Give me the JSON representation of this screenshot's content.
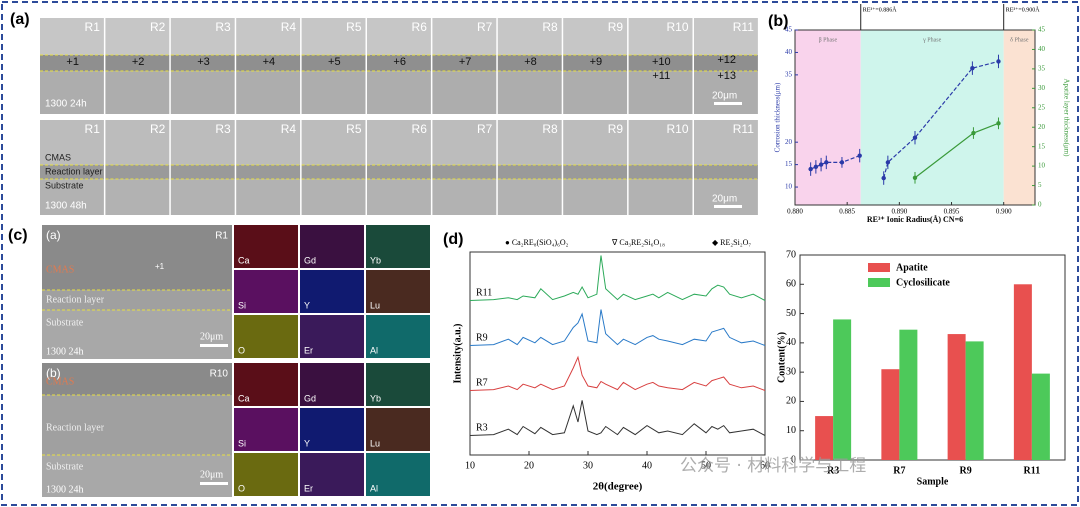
{
  "panel_a": {
    "label": "(a)",
    "samples": [
      "R1",
      "R2",
      "R3",
      "R4",
      "R5",
      "R6",
      "R7",
      "R8",
      "R9",
      "R10",
      "R11"
    ],
    "row1": {
      "markers": [
        "+1",
        "+2",
        "+3",
        "+4",
        "+5",
        "+6",
        "+7",
        "+8",
        "+9",
        "+10",
        "+11",
        "+12",
        "+13"
      ],
      "condition": "1300 24h",
      "scale": "20μm"
    },
    "row2": {
      "layers": [
        "CMAS",
        "Reaction layer",
        "Substrate"
      ],
      "condition": "1300 48h",
      "scale": "20μm"
    }
  },
  "panel_c": {
    "label": "(c)",
    "images": [
      {
        "label": "(a)",
        "sample": "R1",
        "marker": "+1",
        "layers": [
          "CMAS",
          "Reaction layer",
          "Substrate"
        ],
        "condition": "1300 24h",
        "scale": "20μm"
      },
      {
        "label": "(b)",
        "sample": "R10",
        "layers": [
          "CMAS",
          "Reaction layer",
          "Substrate"
        ],
        "condition": "1300 24h",
        "scale": "20μm"
      }
    ],
    "elements": [
      "Ca",
      "Gd",
      "Yb",
      "Si",
      "Y",
      "Lu",
      "O",
      "Er",
      "Al"
    ]
  },
  "panel_d": {
    "label": "(d)"
  },
  "chart_data": [
    {
      "type": "line",
      "label": "(b)",
      "xlabel": "RE³⁺ Ionic Radius(Å) CN=6",
      "ylabel": "Corrosion thickness(μm)",
      "y2label": "Apatite layer thickness(μm)",
      "xlim": [
        0.88,
        0.903
      ],
      "xticks": [
        {
          "value": 0.88,
          "label": "0.880"
        },
        {
          "value": 0.885,
          "label": "0.885"
        },
        {
          "value": 0.89,
          "label": "0.890"
        },
        {
          "value": 0.895,
          "label": "0.895"
        },
        {
          "value": 0.9,
          "label": "0.900"
        }
      ],
      "ylim": [
        6,
        45
      ],
      "yticks": [
        10,
        15,
        20,
        35,
        40,
        45
      ],
      "y2lim": [
        0,
        45
      ],
      "y2ticks": [
        0,
        5,
        10,
        15,
        20,
        25,
        30,
        35,
        40,
        45
      ],
      "regions": [
        {
          "name": "β Phase",
          "from": 0.88,
          "to": 0.8863,
          "color": "#f9d3ec"
        },
        {
          "name": "γ Phase",
          "from": 0.8863,
          "to": 0.9,
          "color": "#cff5ec"
        },
        {
          "name": "δ Phase",
          "from": 0.9,
          "to": 0.903,
          "color": "#fbe2d2"
        }
      ],
      "annotations": [
        {
          "text": "RE³⁺=0.886Å",
          "x": 0.8863
        },
        {
          "text": "RE³⁺=0.900Å",
          "x": 0.9
        }
      ],
      "series": [
        {
          "color": "#2a3aa8",
          "x": [
            0.8815,
            0.882,
            0.8825,
            0.883,
            0.8845,
            0.8862,
            0.8875,
            0.8885,
            0.8889,
            0.8915,
            0.897,
            0.8995
          ],
          "values": [
            14,
            14.5,
            15,
            15.5,
            15.5,
            17,
            null,
            12,
            15.5,
            21,
            36.5,
            38
          ],
          "errors": [
            1.5,
            1.5,
            1.5,
            1.5,
            1.2,
            1.5,
            null,
            1.5,
            1.5,
            1.5,
            1.5,
            1.5
          ]
        },
        {
          "color": "#3a9a3a",
          "axis": "y2",
          "x": [
            0.8915,
            0.8971,
            0.8995
          ],
          "values": [
            7,
            18.5,
            21
          ],
          "errors": [
            1.5,
            1.5,
            1.5
          ]
        }
      ]
    },
    {
      "type": "xrd",
      "xlabel": "2θ(degree)",
      "ylabel": "Intensity(a.u.)",
      "xlim": [
        10,
        60
      ],
      "xticks": [
        10,
        20,
        30,
        40,
        50,
        60
      ],
      "legend": [
        "● Ca₂RE₈(SiO₄)₆O₂",
        "∇ Ca₃RE₂Si₆O₁₈",
        "◆ RE₂Si₂O₇"
      ],
      "x": [
        10,
        14,
        16.5,
        18,
        19,
        21,
        22,
        24,
        26,
        27.5,
        28.3,
        29,
        30,
        31.5,
        32.2,
        33,
        35,
        36,
        38,
        40,
        41,
        42,
        43.5,
        46,
        48,
        50,
        51,
        52,
        53,
        54,
        56,
        58,
        60
      ],
      "series": [
        {
          "name": "R11",
          "color": "#2daa5a",
          "values": [
            5,
            6,
            8,
            6,
            10,
            8,
            18,
            6,
            10,
            14,
            12,
            20,
            8,
            12,
            55,
            18,
            6,
            12,
            6,
            10,
            12,
            8,
            14,
            6,
            12,
            10,
            18,
            22,
            20,
            12,
            8,
            12,
            5
          ]
        },
        {
          "name": "R9",
          "color": "#2a7ac8",
          "values": [
            5,
            6,
            12,
            6,
            14,
            8,
            14,
            6,
            10,
            25,
            30,
            40,
            10,
            8,
            45,
            18,
            6,
            12,
            6,
            14,
            16,
            12,
            10,
            6,
            12,
            10,
            20,
            22,
            24,
            14,
            8,
            10,
            5
          ]
        },
        {
          "name": "R7",
          "color": "#d84040",
          "values": [
            5,
            6,
            10,
            6,
            12,
            8,
            12,
            6,
            10,
            30,
            42,
            22,
            10,
            8,
            15,
            12,
            6,
            14,
            6,
            12,
            14,
            10,
            8,
            6,
            14,
            10,
            16,
            18,
            20,
            12,
            8,
            10,
            5
          ]
        },
        {
          "name": "R3",
          "color": "#333333",
          "values": [
            5,
            6,
            12,
            6,
            15,
            7,
            14,
            6,
            8,
            38,
            20,
            44,
            10,
            6,
            8,
            15,
            6,
            14,
            6,
            16,
            12,
            8,
            10,
            6,
            18,
            8,
            15,
            12,
            16,
            8,
            10,
            12,
            5
          ]
        }
      ]
    },
    {
      "type": "bar",
      "xlabel": "Sample",
      "ylabel": "Content(%)",
      "categories": [
        "R3",
        "R7",
        "R9",
        "R11"
      ],
      "ylim": [
        0,
        70
      ],
      "yticks": [
        0,
        10,
        20,
        30,
        40,
        50,
        60,
        70
      ],
      "series": [
        {
          "name": "Apatite",
          "color": "#e8504f",
          "values": [
            15,
            31,
            43,
            60
          ]
        },
        {
          "name": "Cyclosilicate",
          "color": "#4dc95a",
          "values": [
            48,
            44.5,
            40.5,
            29.5
          ]
        }
      ]
    }
  ],
  "watermark": "公众号 · 材料科学与工程"
}
